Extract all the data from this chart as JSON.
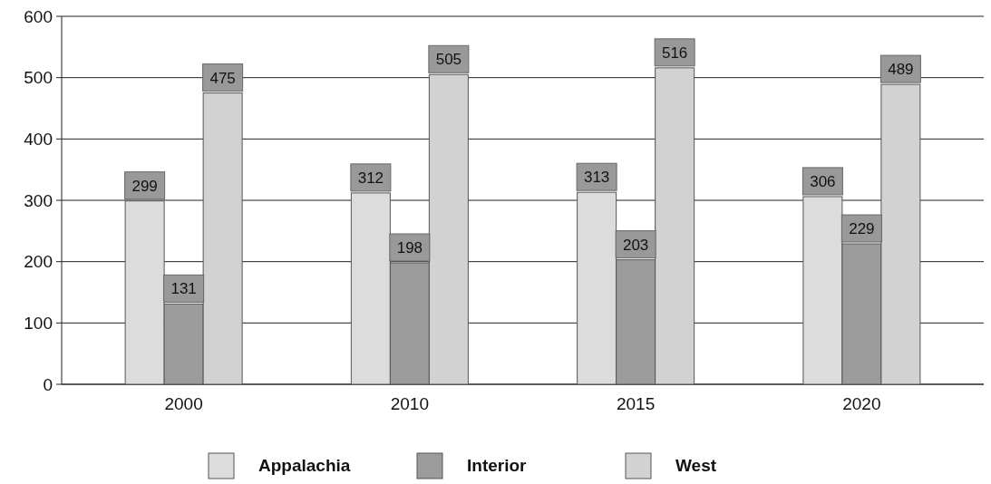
{
  "chart_data": {
    "type": "bar",
    "categories": [
      "2000",
      "2010",
      "2015",
      "2020"
    ],
    "series": [
      {
        "name": "Appalachia",
        "color": "#dcdcdc",
        "values": [
          299,
          312,
          313,
          306
        ]
      },
      {
        "name": "Interior",
        "color": "#9c9c9c",
        "values": [
          131,
          198,
          203,
          229
        ]
      },
      {
        "name": "West",
        "color": "#d2d2d2",
        "values": [
          475,
          505,
          516,
          489
        ]
      }
    ],
    "ylim": [
      0,
      600
    ],
    "yticks": [
      0,
      100,
      200,
      300,
      400,
      500,
      600
    ],
    "grid": "y",
    "legend": "bottom",
    "data_labels": true
  }
}
